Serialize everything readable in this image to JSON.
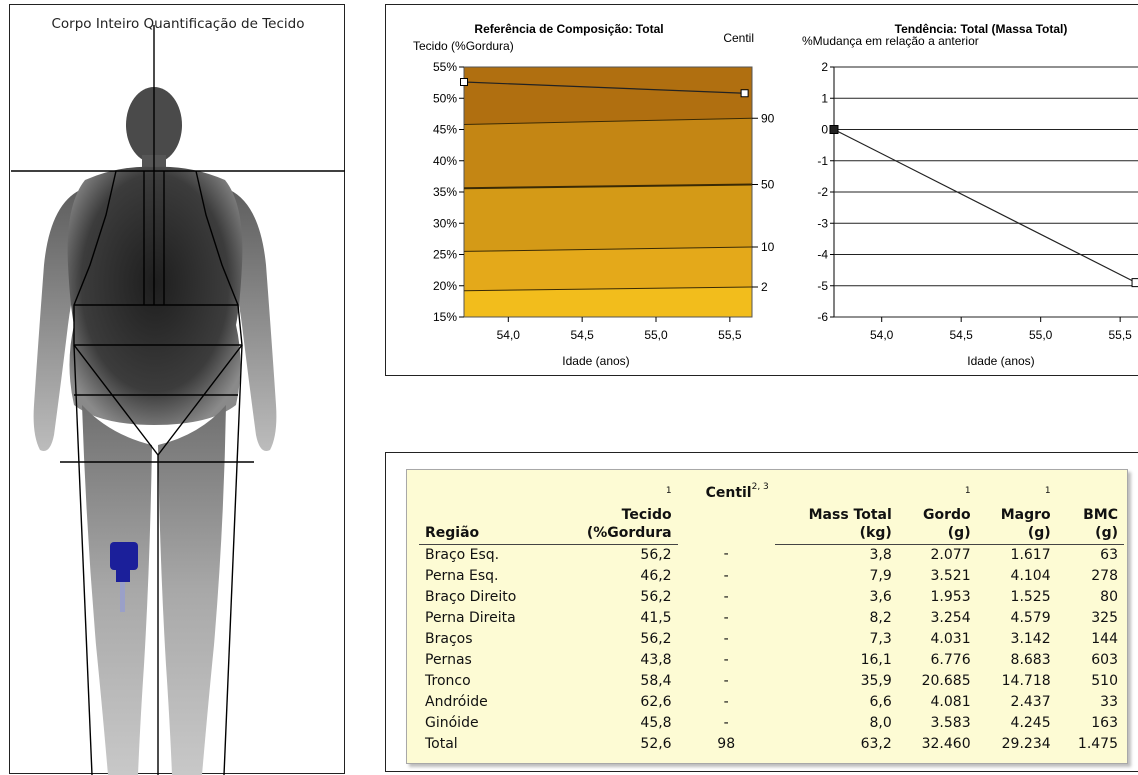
{
  "scan": {
    "title": "Corpo Inteiro Quantificação de Tecido"
  },
  "composition_chart": {
    "title": "Referência de Composição: Total",
    "ylabel": "Tecido (%Gordura)",
    "right_label": "Centil",
    "y_ticks": [
      "55%",
      "50%",
      "45%",
      "40%",
      "35%",
      "30%",
      "25%",
      "20%",
      "15%"
    ],
    "x_ticks": [
      "54,0",
      "54,5",
      "55,0",
      "55,5"
    ],
    "xlabel": "Idade (anos)",
    "centile_labels": [
      "90",
      "50",
      "10",
      "2"
    ],
    "band_colors": [
      "#f2bd1c",
      "#e4a91a",
      "#d49a17",
      "#c48614",
      "#b06f10"
    ]
  },
  "trend_chart": {
    "title": "Tendência: Total (Massa Total)",
    "ylabel": "%Mudança em relação a anterior",
    "y_ticks": [
      "2",
      "1",
      "0",
      "-1",
      "-2",
      "-3",
      "-4",
      "-5",
      "-6"
    ],
    "x_ticks": [
      "54,0",
      "54,5",
      "55,0",
      "55,5"
    ],
    "xlabel": "Idade (anos)"
  },
  "chart_data": [
    {
      "type": "line",
      "title": "Referência de Composição: Total",
      "ylabel": "Tecido (%Gordura)",
      "xlabel": "Idade (anos)",
      "xlim": [
        53.7,
        55.65
      ],
      "ylim": [
        15,
        55
      ],
      "series": [
        {
          "name": "Total",
          "x": [
            53.7,
            55.6
          ],
          "values": [
            52.6,
            50.8
          ]
        }
      ],
      "centiles": [
        {
          "name": "90",
          "values": [
            45.8,
            46.8
          ]
        },
        {
          "name": "50",
          "values": [
            35.6,
            36.2
          ]
        },
        {
          "name": "10",
          "values": [
            25.5,
            26.2
          ]
        },
        {
          "name": "2",
          "values": [
            19.2,
            19.8
          ]
        }
      ]
    },
    {
      "type": "line",
      "title": "Tendência: Total (Massa Total)",
      "ylabel": "%Mudança em relação a anterior",
      "xlabel": "Idade (anos)",
      "xlim": [
        53.7,
        55.65
      ],
      "ylim": [
        -6,
        2
      ],
      "series": [
        {
          "name": "Total (Massa Total)",
          "x": [
            53.7,
            55.6
          ],
          "values": [
            0,
            -4.9
          ]
        }
      ]
    }
  ],
  "table": {
    "headers": [
      {
        "label": "Região",
        "sup": ""
      },
      {
        "label": "Tecido",
        "label2": "(%Gordura",
        "sup": "1"
      },
      {
        "label": "Centil",
        "sup": "2, 3"
      },
      {
        "label": "Mass Total",
        "label2": "(kg)",
        "sup": ""
      },
      {
        "label": "Gordo",
        "label2": "(g)",
        "sup": "1"
      },
      {
        "label": "Magro",
        "label2": "(g)",
        "sup": "1"
      },
      {
        "label": "BMC",
        "label2": "(g)",
        "sup": ""
      }
    ],
    "rows": [
      [
        "Braço Esq.",
        "56,2",
        "-",
        "3,8",
        "2.077",
        "1.617",
        "63"
      ],
      [
        "Perna Esq.",
        "46,2",
        "-",
        "7,9",
        "3.521",
        "4.104",
        "278"
      ],
      [
        "Braço Direito",
        "56,2",
        "-",
        "3,6",
        "1.953",
        "1.525",
        "80"
      ],
      [
        "Perna Direita",
        "41,5",
        "-",
        "8,2",
        "3.254",
        "4.579",
        "325"
      ],
      [
        "Braços",
        "56,2",
        "-",
        "7,3",
        "4.031",
        "3.142",
        "144"
      ],
      [
        "Pernas",
        "43,8",
        "-",
        "16,1",
        "6.776",
        "8.683",
        "603"
      ],
      [
        "Tronco",
        "58,4",
        "-",
        "35,9",
        "20.685",
        "14.718",
        "510"
      ],
      [
        "Andróide",
        "62,6",
        "-",
        "6,6",
        "4.081",
        "2.437",
        "33"
      ],
      [
        "Ginóide",
        "45,8",
        "-",
        "8,0",
        "3.583",
        "4.245",
        "163"
      ],
      [
        "Total",
        "52,6",
        "98",
        "63,2",
        "32.460",
        "29.234",
        "1.475"
      ]
    ]
  }
}
